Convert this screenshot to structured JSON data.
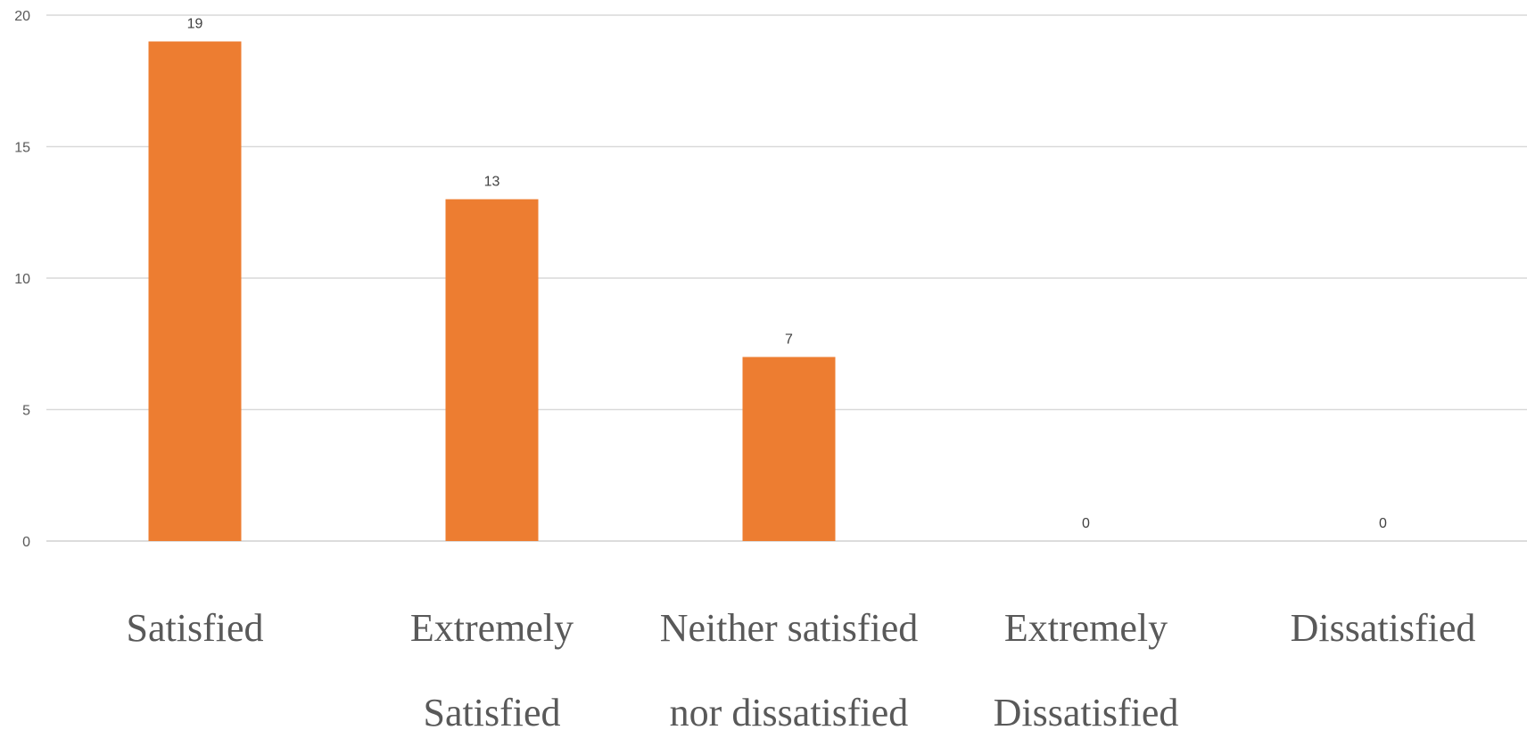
{
  "chart_data": {
    "type": "bar",
    "categories": [
      [
        "Satisfied"
      ],
      [
        "Extremely",
        "Satisfied"
      ],
      [
        "Neither satisfied",
        "nor dissatisfied"
      ],
      [
        "Extremely",
        "Dissatisfied"
      ],
      [
        "Dissatisfied"
      ]
    ],
    "values": [
      19,
      13,
      7,
      0,
      0
    ],
    "data_labels": [
      "19",
      "13",
      "7",
      "0",
      "0"
    ],
    "y_ticks": [
      0,
      5,
      10,
      15,
      20
    ],
    "ylim": [
      0,
      20
    ],
    "grid": true,
    "legend": "none",
    "bar_color": "#ED7D31",
    "title": "",
    "xlabel": "",
    "ylabel": ""
  }
}
